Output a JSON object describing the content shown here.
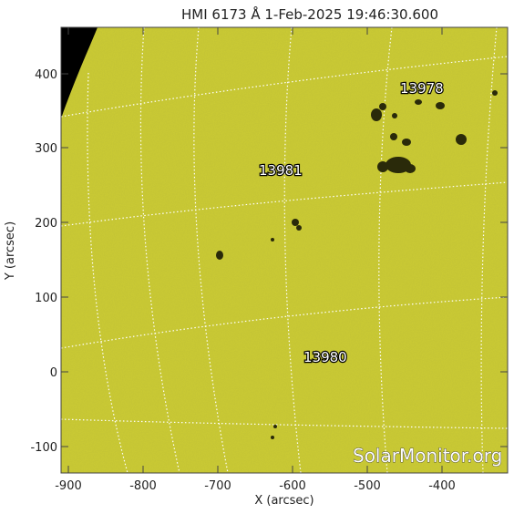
{
  "title": "HMI 6173 Å  1-Feb-2025 19:46:30.600",
  "x_axis": {
    "label": "X (arcsec)",
    "ticks": [
      "-900",
      "-800",
      "-700",
      "-600",
      "-500",
      "-400"
    ]
  },
  "y_axis": {
    "label": "Y (arcsec)",
    "ticks": [
      "-100",
      "0",
      "100",
      "200",
      "300",
      "400"
    ]
  },
  "regions": [
    {
      "id": "13978",
      "x": -440,
      "y": 380
    },
    {
      "id": "13981",
      "x": -630,
      "y": 270
    },
    {
      "id": "13980",
      "x": -570,
      "y": 20
    }
  ],
  "watermark": "SolarMonitor.org",
  "colors": {
    "disk": "#cccc33",
    "space": "#000000",
    "grid": "#ffffff",
    "sunspot": "#2a2a0a"
  }
}
